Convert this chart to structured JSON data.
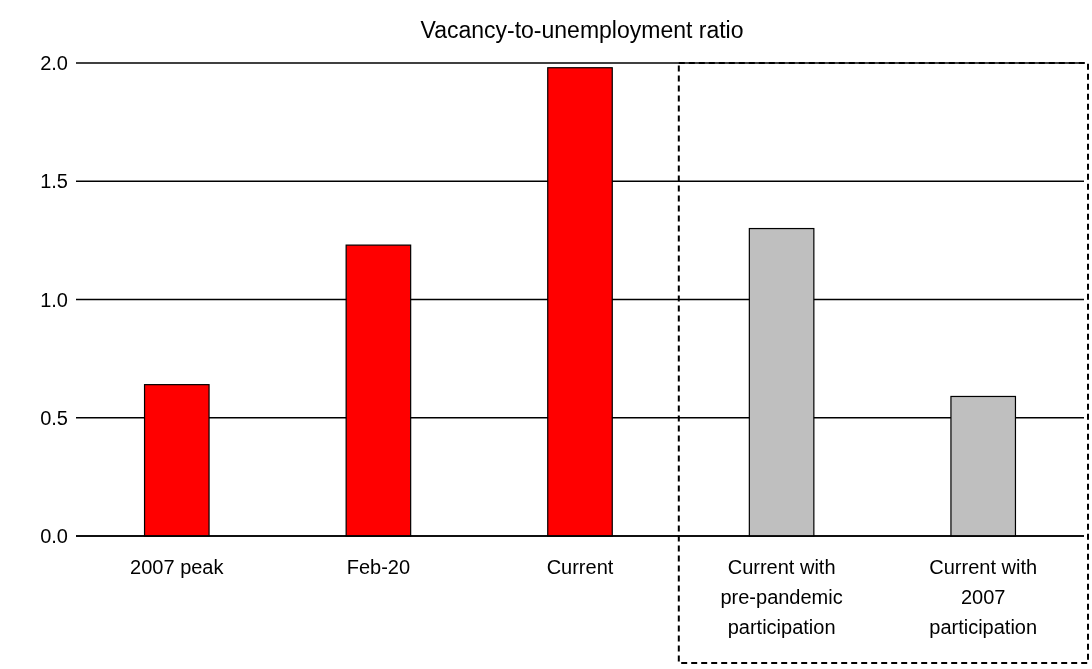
{
  "chart_data": {
    "type": "bar",
    "title": "Vacancy-to-unemployment ratio",
    "categories": [
      "2007 peak",
      "Feb-20",
      "Current",
      "Current with pre-pandemic participation",
      "Current with 2007 participation"
    ],
    "values": [
      0.64,
      1.23,
      1.98,
      1.3,
      0.59
    ],
    "colors": [
      "#ff0000",
      "#ff0000",
      "#ff0000",
      "#bfbfbf",
      "#bfbfbf"
    ],
    "ylim": [
      0,
      2
    ],
    "yticks": [
      {
        "value": 0,
        "label": "0.0"
      },
      {
        "value": 0.5,
        "label": "0.5"
      },
      {
        "value": 1,
        "label": "1.0"
      },
      {
        "value": 1.5,
        "label": "1.5"
      },
      {
        "value": 2,
        "label": "2.0"
      }
    ],
    "grid": "y"
  }
}
